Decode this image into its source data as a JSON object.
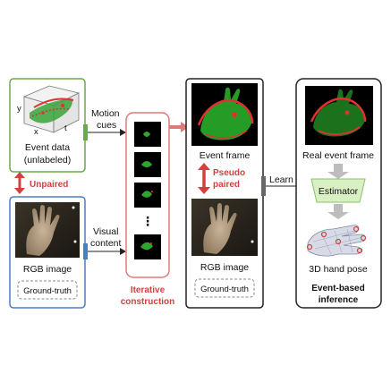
{
  "event_panel": {
    "axis_y": "y",
    "axis_x": "x",
    "axis_t": "t",
    "label_line1": "Event data",
    "label_line2": "(unlabeled)"
  },
  "unpaired_label": "Unpaired",
  "rgb_panel": {
    "label": "RGB image",
    "ground_truth": "Ground-truth"
  },
  "motion_cues": {
    "line1": "Motion",
    "line2": "cues"
  },
  "visual_content": {
    "line1": "Visual",
    "line2": "content"
  },
  "iterative": {
    "line1": "Iterative",
    "line2": "construction",
    "ellipsis": "⋮"
  },
  "middle_panel": {
    "event_frame_label": "Event frame",
    "pseudo_line1": "Pseudo",
    "pseudo_line2": "paired",
    "rgb_label": "RGB image",
    "ground_truth": "Ground-truth"
  },
  "learn_label": "Learn",
  "right_panel": {
    "real_event_label": "Real event frame",
    "estimator_label": "Estimator",
    "hand_pose_label": "3D hand pose",
    "inference_line1": "Event-based",
    "inference_line2": "inference"
  },
  "colors": {
    "green_border": "#6aaa4a",
    "blue_border": "#4a7fc0",
    "red_accent": "#d2403f",
    "estimator_fill": "#d9efc4"
  }
}
